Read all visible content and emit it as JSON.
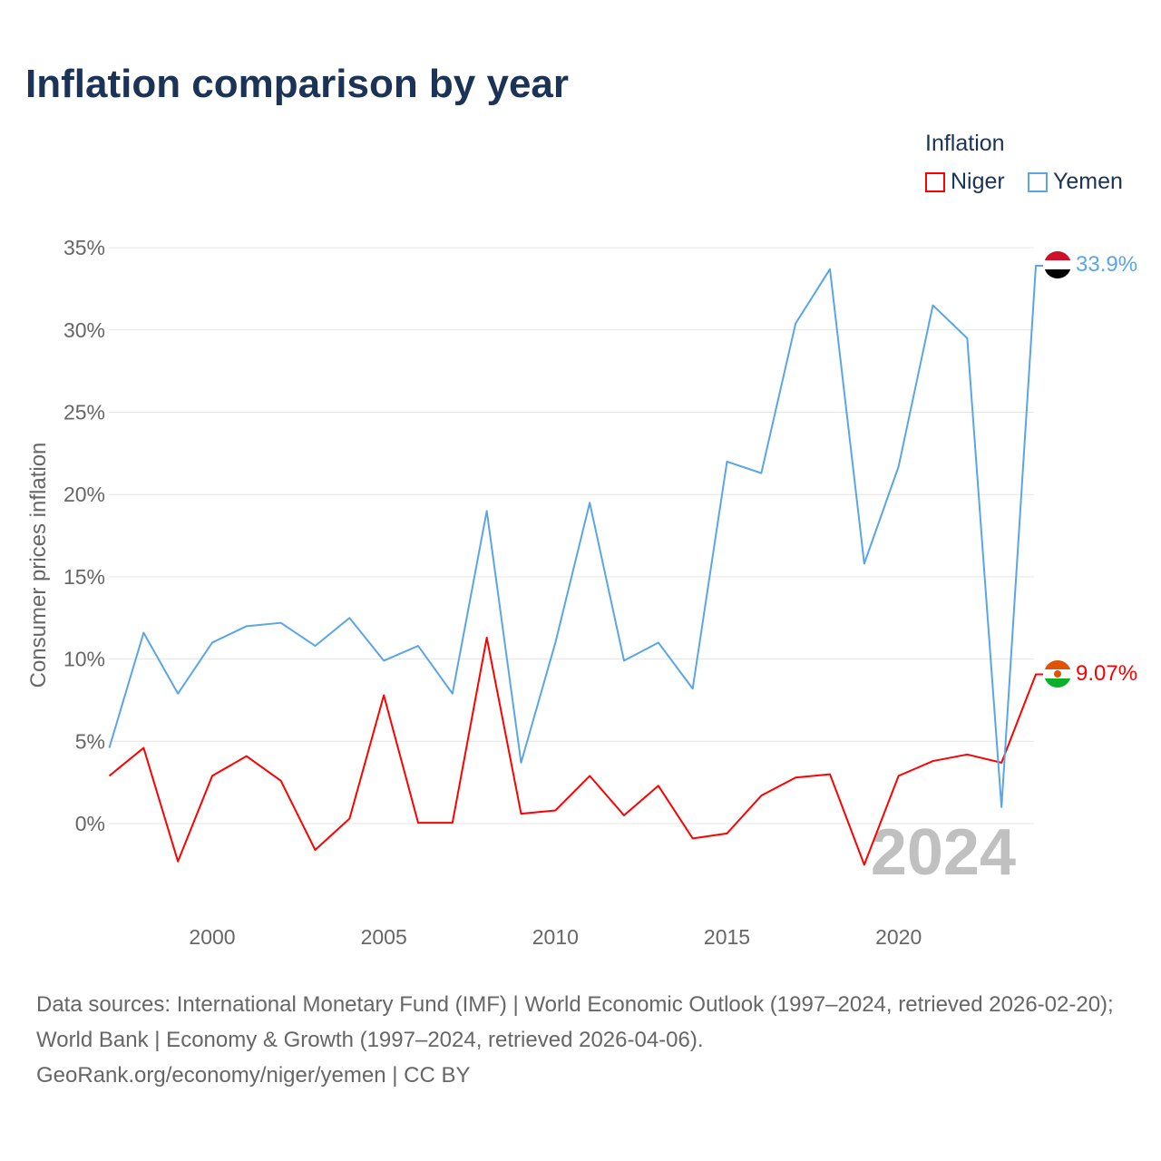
{
  "title": "Inflation comparison by year",
  "legend": {
    "title": "Inflation",
    "items": [
      {
        "name": "Niger",
        "color": "#ff0000"
      },
      {
        "name": "Yemen",
        "color": "#5aa5e8"
      }
    ]
  },
  "year_watermark": "2024",
  "footer": {
    "line1": "Data sources: International Monetary Fund (IMF) | World Economic Outlook (1997–2024, retrieved 2026-02-20); World Bank | Economy & Growth (1997–2024, retrieved 2026-04-06).",
    "line2": "GeoRank.org/economy/niger/yemen | CC BY"
  },
  "chart_data": {
    "type": "line",
    "title": "Inflation comparison by year",
    "xlabel": "",
    "ylabel": "Consumer prices inflation",
    "x": [
      1997,
      1998,
      1999,
      2000,
      2001,
      2002,
      2003,
      2004,
      2005,
      2006,
      2007,
      2008,
      2009,
      2010,
      2011,
      2012,
      2013,
      2014,
      2015,
      2016,
      2017,
      2018,
      2019,
      2020,
      2021,
      2022,
      2023,
      2024
    ],
    "xticks": [
      2000,
      2005,
      2010,
      2015,
      2020
    ],
    "yticks": [
      0,
      5,
      10,
      15,
      20,
      25,
      30,
      35
    ],
    "ytick_labels": [
      "0%",
      "5%",
      "10%",
      "15%",
      "20%",
      "25%",
      "30%",
      "35%"
    ],
    "xlim": [
      1997,
      2024
    ],
    "ylim": [
      -5,
      35
    ],
    "grid": true,
    "legend_position": "top-right",
    "series": [
      {
        "name": "Niger",
        "color": "#ff0000",
        "end_label": "9.07%",
        "values": [
          2.9,
          4.6,
          -2.3,
          2.9,
          4.1,
          2.6,
          -1.6,
          0.3,
          7.8,
          0.05,
          0.05,
          11.3,
          0.6,
          0.8,
          2.9,
          0.5,
          2.3,
          -0.9,
          -0.6,
          1.7,
          2.8,
          3.0,
          -2.5,
          2.9,
          3.8,
          4.2,
          3.7,
          9.07
        ]
      },
      {
        "name": "Yemen",
        "color": "#5aa5e8",
        "end_label": "33.9%",
        "values": [
          4.6,
          11.6,
          7.9,
          11.0,
          12.0,
          12.2,
          10.8,
          12.5,
          9.9,
          10.8,
          7.9,
          19.0,
          3.7,
          11.0,
          19.5,
          9.9,
          11.0,
          8.2,
          22.0,
          21.3,
          30.4,
          33.7,
          15.8,
          21.7,
          31.5,
          29.5,
          1.0,
          33.9
        ]
      }
    ]
  }
}
